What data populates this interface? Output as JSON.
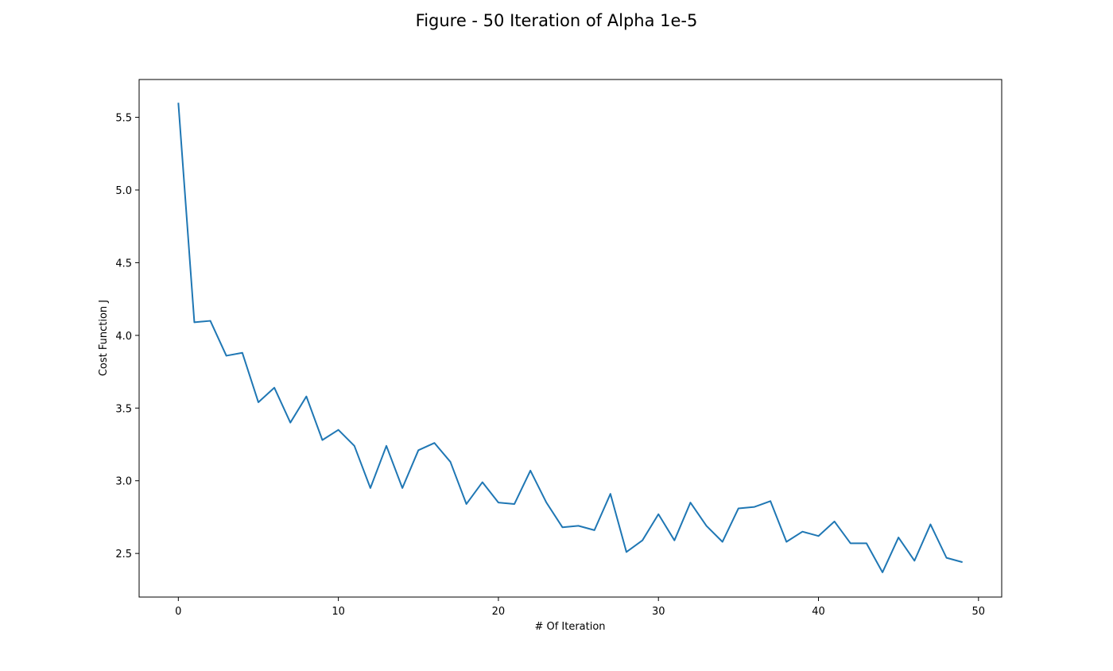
{
  "figure_title": "Figure - 50 Iteration of Alpha 1e-5",
  "colors": {
    "line": "#1f77b4",
    "axes": "#000000",
    "background": "#ffffff"
  },
  "chart_data": {
    "type": "line",
    "title": "Figure - 50 Iteration of Alpha 1e-5",
    "xlabel": "# Of Iteration",
    "ylabel": "Cost Function J",
    "xlim": [
      -2.45,
      51.45
    ],
    "ylim": [
      2.2,
      5.76
    ],
    "xticks": [
      0,
      10,
      20,
      30,
      40,
      50
    ],
    "yticks": [
      2.5,
      3.0,
      3.5,
      4.0,
      4.5,
      5.0,
      5.5
    ],
    "ytick_labels": [
      "2.5",
      "3.0",
      "3.5",
      "4.0",
      "4.5",
      "5.0",
      "5.5"
    ],
    "xtick_labels": [
      "0",
      "10",
      "20",
      "30",
      "40",
      "50"
    ],
    "grid": false,
    "series": [
      {
        "x": [
          0,
          1,
          2,
          3,
          4,
          5,
          6,
          7,
          8,
          9,
          10,
          11,
          12,
          13,
          14,
          15,
          16,
          17,
          18,
          19,
          20,
          21,
          22,
          23,
          24,
          25,
          26,
          27,
          28,
          29,
          30,
          31,
          32,
          33,
          34,
          35,
          36,
          37,
          38,
          39,
          40,
          41,
          42,
          43,
          44,
          45,
          46,
          47,
          48,
          49
        ],
        "values": [
          5.6,
          4.09,
          4.1,
          3.86,
          3.88,
          3.54,
          3.64,
          3.4,
          3.58,
          3.28,
          3.35,
          3.24,
          2.95,
          3.24,
          2.95,
          3.21,
          3.26,
          3.13,
          2.84,
          2.99,
          2.85,
          2.84,
          3.07,
          2.85,
          2.68,
          2.69,
          2.66,
          2.91,
          2.51,
          2.59,
          2.77,
          2.59,
          2.85,
          2.69,
          2.58,
          2.81,
          2.82,
          2.86,
          2.58,
          2.65,
          2.62,
          2.72,
          2.57,
          2.57,
          2.37,
          2.61,
          2.45,
          2.7,
          2.47,
          2.44
        ]
      }
    ]
  }
}
